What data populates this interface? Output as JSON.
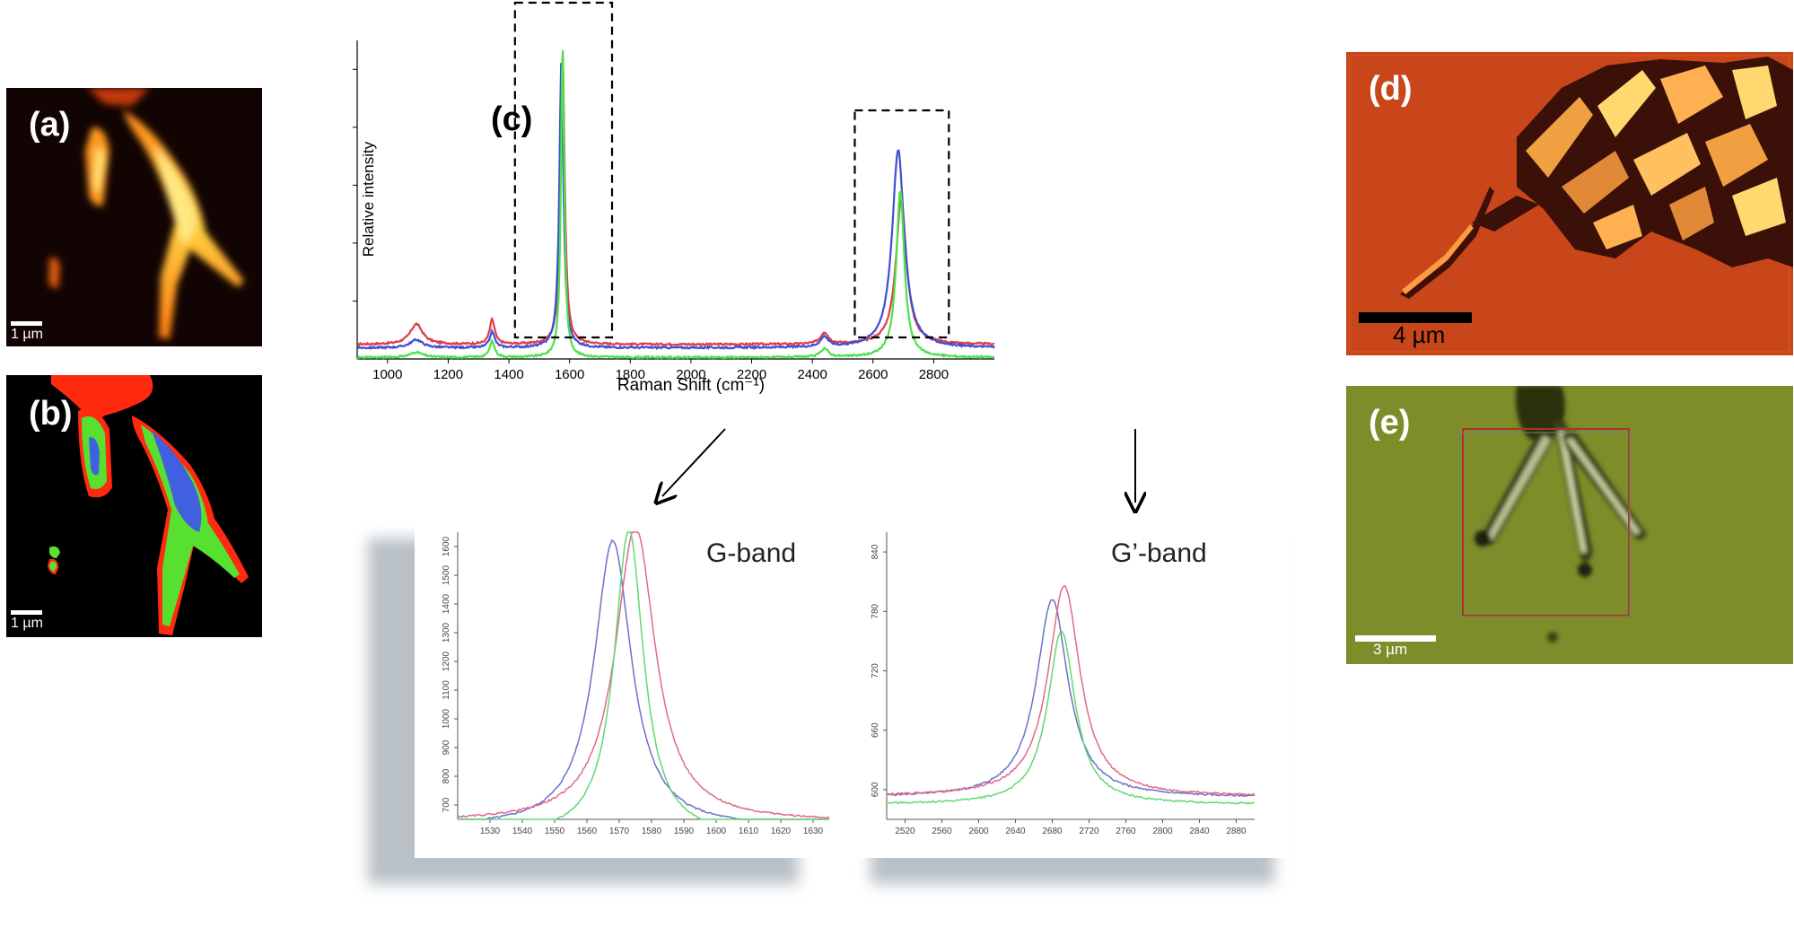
{
  "panels": {
    "a": {
      "label": "(a)",
      "scale": "1 µm"
    },
    "b": {
      "label": "(b)",
      "scale": "1 µm"
    },
    "c": {
      "label": "(c)"
    },
    "d": {
      "label": "(d)",
      "scale": "4 µm"
    },
    "e": {
      "label": "(e)",
      "scale": "3 µm"
    }
  },
  "colors": {
    "red": "#e03c48",
    "blue": "#3f4fd1",
    "green": "#4ce04c",
    "inset_red": "#e06a8a",
    "inset_blue": "#6a72c8",
    "inset_green": "#62d872"
  },
  "chart_data": [
    {
      "type": "line",
      "title": "",
      "xlabel": "Raman Shift (cm⁻¹)",
      "ylabel": "Relative intensity",
      "xlim": [
        900,
        3000
      ],
      "ylim": [
        600,
        1700
      ],
      "xticks": [
        1000,
        1200,
        1400,
        1600,
        1800,
        2000,
        2200,
        2400,
        2600,
        2800
      ],
      "yticks": [
        800,
        1000,
        1200,
        1400,
        1600
      ],
      "grid": false,
      "series": [
        {
          "color": "red",
          "baseline": 650,
          "peaks": [
            [
              1095,
              70,
              50
            ],
            [
              1345,
              85,
              20
            ],
            [
              1577,
              1020,
              16
            ],
            [
              2440,
              40,
              30
            ],
            [
              2693,
              500,
              42
            ]
          ]
        },
        {
          "color": "blue",
          "baseline": 638,
          "peaks": [
            [
              1095,
              28,
              50
            ],
            [
              1345,
              55,
              20
            ],
            [
              1573,
              1000,
              16
            ],
            [
              2440,
              35,
              30
            ],
            [
              2683,
              685,
              48
            ]
          ]
        },
        {
          "color": "green",
          "baseline": 605,
          "peaks": [
            [
              1095,
              18,
              50
            ],
            [
              1345,
              55,
              20
            ],
            [
              1577,
              1085,
              13
            ],
            [
              2440,
              30,
              30
            ],
            [
              2690,
              575,
              32
            ]
          ]
        }
      ],
      "highlight_boxes": [
        [
          1420,
          1740
        ],
        [
          2540,
          2850
        ]
      ]
    },
    {
      "type": "line",
      "title": "G-band",
      "xlim": [
        1520,
        1635
      ],
      "ylim": [
        650,
        1650
      ],
      "xticks": [
        1530,
        1540,
        1550,
        1560,
        1570,
        1580,
        1590,
        1600,
        1610,
        1620,
        1630
      ],
      "yticks": [
        700,
        800,
        900,
        1000,
        1100,
        1200,
        1300,
        1400,
        1500,
        1600
      ],
      "series": [
        {
          "color": "inset_blue",
          "center": 1568,
          "height": 1000,
          "width": 14,
          "baseline": 620
        },
        {
          "color": "inset_red",
          "center": 1575,
          "height": 1030,
          "width": 15,
          "baseline": 640
        },
        {
          "color": "inset_green",
          "center": 1573,
          "height": 1070,
          "width": 11,
          "baseline": 590
        }
      ]
    },
    {
      "type": "line",
      "title": "G’-band",
      "xlim": [
        2500,
        2900
      ],
      "ylim": [
        570,
        860
      ],
      "xticks": [
        2520,
        2560,
        2600,
        2640,
        2680,
        2720,
        2760,
        2800,
        2840,
        2880
      ],
      "yticks": [
        600,
        660,
        720,
        780,
        840
      ],
      "series": [
        {
          "color": "inset_blue",
          "center": 2680,
          "height": 200,
          "width": 42,
          "baseline": 592
        },
        {
          "color": "inset_red",
          "center": 2693,
          "height": 213,
          "width": 42,
          "baseline": 593
        },
        {
          "color": "inset_green",
          "center": 2690,
          "height": 175,
          "width": 36,
          "baseline": 585
        }
      ]
    }
  ]
}
